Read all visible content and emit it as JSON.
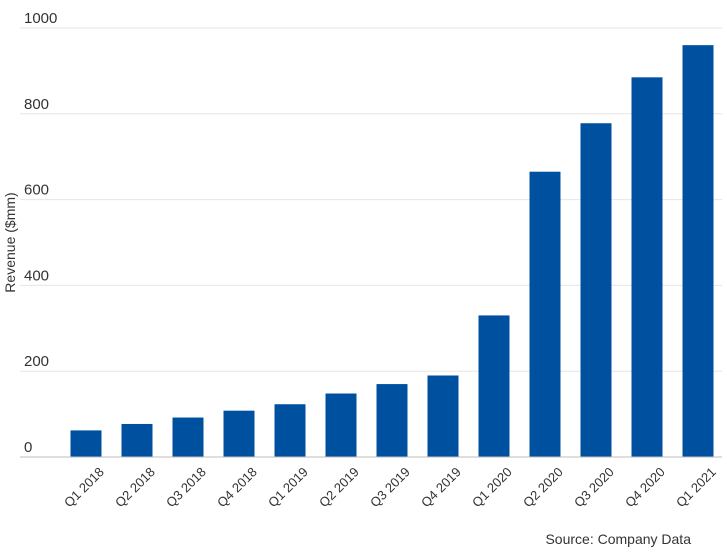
{
  "chart_data": {
    "type": "bar",
    "categories": [
      "Q1 2018",
      "Q2 2018",
      "Q3 2018",
      "Q4 2018",
      "Q1 2019",
      "Q2 2019",
      "Q3 2019",
      "Q4 2019",
      "Q1 2020",
      "Q2 2020",
      "Q3 2020",
      "Q4 2020",
      "Q1 2021"
    ],
    "values": [
      62,
      77,
      92,
      108,
      123,
      148,
      170,
      190,
      330,
      665,
      778,
      885,
      960
    ],
    "ylabel": "Revenue ($mm)",
    "ylim": [
      0,
      1000
    ],
    "yticks": [
      0,
      200,
      400,
      600,
      800,
      1000
    ],
    "grid": true,
    "bar_color": "#0050A0"
  },
  "source_note": "Source: Company Data"
}
